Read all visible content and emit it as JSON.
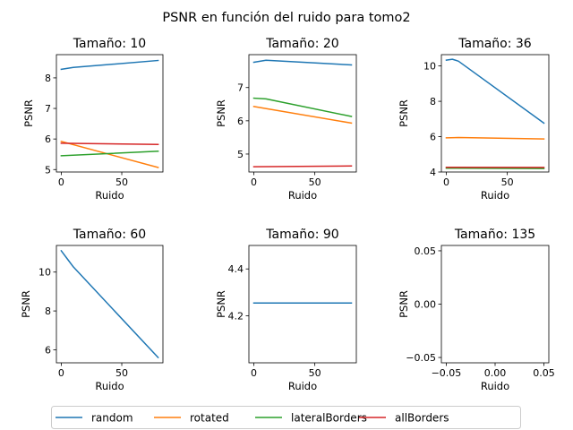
{
  "figure_title": "PSNR en función del ruido para tomo2",
  "legend": {
    "placement": "bottom-center",
    "entries": [
      {
        "label": "random",
        "color": "#1f77b4"
      },
      {
        "label": "rotated",
        "color": "#ff7f0e"
      },
      {
        "label": "lateralBorders",
        "color": "#2ca02c"
      },
      {
        "label": "allBorders",
        "color": "#d62728"
      }
    ]
  },
  "chart_data": [
    {
      "type": "line",
      "title": "Tamaño: 10",
      "xlabel": "Ruido",
      "ylabel": "PSNR",
      "xlim": [
        -4,
        84
      ],
      "ylim": [
        4.92,
        8.76
      ],
      "xticks": [
        0,
        50
      ],
      "xtick_labels": [
        "0",
        "50"
      ],
      "yticks": [
        5,
        6,
        7,
        8
      ],
      "ytick_labels": [
        "5",
        "6",
        "7",
        "8"
      ],
      "series": [
        {
          "name": "random",
          "color": "#1f77b4",
          "x": [
            0,
            10,
            80
          ],
          "y": [
            8.28,
            8.34,
            8.57
          ]
        },
        {
          "name": "rotated",
          "color": "#ff7f0e",
          "x": [
            0,
            80
          ],
          "y": [
            5.92,
            5.07
          ]
        },
        {
          "name": "lateralBorders",
          "color": "#2ca02c",
          "x": [
            0,
            80
          ],
          "y": [
            5.45,
            5.6
          ]
        },
        {
          "name": "allBorders",
          "color": "#d62728",
          "x": [
            0,
            80
          ],
          "y": [
            5.86,
            5.82
          ]
        }
      ]
    },
    {
      "type": "line",
      "title": "Tamaño: 20",
      "xlabel": "Ruido",
      "ylabel": "PSNR",
      "xlim": [
        -4,
        84
      ],
      "ylim": [
        4.46,
        7.99
      ],
      "xticks": [
        0,
        50
      ],
      "xtick_labels": [
        "0",
        "50"
      ],
      "yticks": [
        5,
        6,
        7
      ],
      "ytick_labels": [
        "5",
        "6",
        "7"
      ],
      "series": [
        {
          "name": "random",
          "color": "#1f77b4",
          "x": [
            0,
            10,
            80
          ],
          "y": [
            7.76,
            7.82,
            7.68
          ]
        },
        {
          "name": "rotated",
          "color": "#ff7f0e",
          "x": [
            0,
            80
          ],
          "y": [
            6.43,
            5.93
          ]
        },
        {
          "name": "lateralBorders",
          "color": "#2ca02c",
          "x": [
            0,
            10,
            80
          ],
          "y": [
            6.68,
            6.66,
            6.13
          ]
        },
        {
          "name": "allBorders",
          "color": "#d62728",
          "x": [
            0,
            80
          ],
          "y": [
            4.62,
            4.64
          ]
        }
      ]
    },
    {
      "type": "line",
      "title": "Tamaño: 36",
      "xlabel": "Ruido",
      "ylabel": "PSNR",
      "xlim": [
        -4,
        84
      ],
      "ylim": [
        4.0,
        10.64
      ],
      "xticks": [
        0,
        50
      ],
      "xtick_labels": [
        "0",
        "50"
      ],
      "yticks": [
        4,
        6,
        8,
        10
      ],
      "ytick_labels": [
        "4",
        "6",
        "8",
        "10"
      ],
      "series": [
        {
          "name": "random",
          "color": "#1f77b4",
          "x": [
            0,
            5,
            10,
            80
          ],
          "y": [
            10.33,
            10.38,
            10.27,
            6.77
          ]
        },
        {
          "name": "rotated",
          "color": "#ff7f0e",
          "x": [
            0,
            10,
            80
          ],
          "y": [
            5.93,
            5.95,
            5.87
          ]
        },
        {
          "name": "lateralBorders",
          "color": "#2ca02c",
          "x": [
            0,
            80
          ],
          "y": [
            4.22,
            4.2
          ]
        },
        {
          "name": "allBorders",
          "color": "#d62728",
          "x": [
            0,
            80
          ],
          "y": [
            4.27,
            4.26
          ]
        }
      ]
    },
    {
      "type": "line",
      "title": "Tamaño: 60",
      "xlabel": "Ruido",
      "ylabel": "PSNR",
      "xlim": [
        -4,
        84
      ],
      "ylim": [
        5.33,
        11.37
      ],
      "xticks": [
        0,
        50
      ],
      "xtick_labels": [
        "0",
        "50"
      ],
      "yticks": [
        6,
        8,
        10
      ],
      "ytick_labels": [
        "6",
        "8",
        "10"
      ],
      "series": [
        {
          "name": "random",
          "color": "#1f77b4",
          "x": [
            0,
            5,
            10,
            80
          ],
          "y": [
            11.1,
            10.68,
            10.27,
            5.6
          ]
        }
      ]
    },
    {
      "type": "line",
      "title": "Tamaño: 90",
      "xlabel": "Ruido",
      "ylabel": "PSNR",
      "xlim": [
        -4,
        84
      ],
      "ylim": [
        4.0,
        4.5
      ],
      "xticks": [
        0,
        50
      ],
      "xtick_labels": [
        "0",
        "50"
      ],
      "yticks": [
        4.2,
        4.4
      ],
      "ytick_labels": [
        "4.2",
        "4.4"
      ],
      "series": [
        {
          "name": "random",
          "color": "#1f77b4",
          "x": [
            0,
            80
          ],
          "y": [
            4.255,
            4.255
          ]
        }
      ]
    },
    {
      "type": "line",
      "title": "Tamaño: 135",
      "xlabel": "Ruido",
      "ylabel": "PSNR",
      "xlim": [
        -0.055,
        0.055
      ],
      "ylim": [
        -0.055,
        0.055
      ],
      "xticks": [
        -0.05,
        0.0,
        0.05
      ],
      "xtick_labels": [
        "−0.05",
        "0.00",
        "0.05"
      ],
      "yticks": [
        -0.05,
        0.0,
        0.05
      ],
      "ytick_labels": [
        "−0.05",
        "0.00",
        "0.05"
      ],
      "series": []
    }
  ]
}
